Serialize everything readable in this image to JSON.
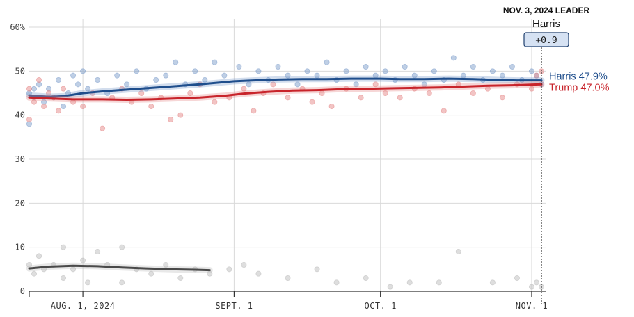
{
  "chart_data": {
    "type": "scatter",
    "title": "",
    "xlabel": "",
    "ylabel": "",
    "y_unit_suffix": "%",
    "ylim": [
      0,
      60
    ],
    "y_ticks": [
      0,
      10,
      20,
      30,
      40,
      50,
      60
    ],
    "xlim": [
      "2024-07-21",
      "2024-11-04"
    ],
    "x_ticks": [
      {
        "date": "2024-08-01",
        "label": "AUG. 1, 2024"
      },
      {
        "date": "2024-09-01",
        "label": "SEPT. 1"
      },
      {
        "date": "2024-10-01",
        "label": "OCT. 1"
      },
      {
        "date": "2024-11-01",
        "label": "NOV. 1"
      }
    ],
    "grid": true,
    "leader": {
      "heading": "NOV. 3, 2024 LEADER",
      "date": "2024-11-03",
      "name": "Harris",
      "margin": "+0.9"
    },
    "series": [
      {
        "name": "Harris",
        "color": "#1f4e8c",
        "dot_color": "#7f9fcc",
        "end_label": "Harris 47.9%",
        "trend": [
          [
            "2024-07-21",
            44.5
          ],
          [
            "2024-07-25",
            44.2
          ],
          [
            "2024-07-28",
            44.3
          ],
          [
            "2024-08-01",
            45.0
          ],
          [
            "2024-08-05",
            45.4
          ],
          [
            "2024-08-10",
            45.8
          ],
          [
            "2024-08-15",
            46.2
          ],
          [
            "2024-08-20",
            46.6
          ],
          [
            "2024-08-25",
            47.0
          ],
          [
            "2024-08-29",
            47.4
          ],
          [
            "2024-09-01",
            47.7
          ],
          [
            "2024-09-05",
            47.9
          ],
          [
            "2024-09-10",
            48.1
          ],
          [
            "2024-09-15",
            48.2
          ],
          [
            "2024-09-20",
            48.2
          ],
          [
            "2024-09-25",
            48.3
          ],
          [
            "2024-10-01",
            48.3
          ],
          [
            "2024-10-05",
            48.2
          ],
          [
            "2024-10-10",
            48.2
          ],
          [
            "2024-10-15",
            48.3
          ],
          [
            "2024-10-20",
            48.2
          ],
          [
            "2024-10-25",
            48.0
          ],
          [
            "2024-10-29",
            47.9
          ],
          [
            "2024-11-03",
            47.9
          ]
        ],
        "points": [
          [
            "2024-07-21",
            45
          ],
          [
            "2024-07-21",
            38
          ],
          [
            "2024-07-22",
            44
          ],
          [
            "2024-07-22",
            46
          ],
          [
            "2024-07-23",
            47
          ],
          [
            "2024-07-24",
            43
          ],
          [
            "2024-07-25",
            46
          ],
          [
            "2024-07-26",
            44
          ],
          [
            "2024-07-27",
            48
          ],
          [
            "2024-07-28",
            42
          ],
          [
            "2024-07-29",
            45
          ],
          [
            "2024-07-30",
            49
          ],
          [
            "2024-07-31",
            47
          ],
          [
            "2024-08-01",
            50
          ],
          [
            "2024-08-02",
            46
          ],
          [
            "2024-08-04",
            48
          ],
          [
            "2024-08-06",
            45
          ],
          [
            "2024-08-08",
            49
          ],
          [
            "2024-08-10",
            47
          ],
          [
            "2024-08-12",
            50
          ],
          [
            "2024-08-14",
            46
          ],
          [
            "2024-08-16",
            48
          ],
          [
            "2024-08-18",
            49
          ],
          [
            "2024-08-20",
            52
          ],
          [
            "2024-08-22",
            47
          ],
          [
            "2024-08-24",
            50
          ],
          [
            "2024-08-26",
            48
          ],
          [
            "2024-08-28",
            52
          ],
          [
            "2024-08-30",
            49
          ],
          [
            "2024-09-02",
            51
          ],
          [
            "2024-09-04",
            47
          ],
          [
            "2024-09-06",
            50
          ],
          [
            "2024-09-08",
            48
          ],
          [
            "2024-09-10",
            51
          ],
          [
            "2024-09-12",
            49
          ],
          [
            "2024-09-14",
            47
          ],
          [
            "2024-09-16",
            50
          ],
          [
            "2024-09-18",
            49
          ],
          [
            "2024-09-20",
            52
          ],
          [
            "2024-09-22",
            48
          ],
          [
            "2024-09-24",
            50
          ],
          [
            "2024-09-26",
            47
          ],
          [
            "2024-09-28",
            51
          ],
          [
            "2024-09-30",
            49
          ],
          [
            "2024-10-02",
            50
          ],
          [
            "2024-10-04",
            48
          ],
          [
            "2024-10-06",
            51
          ],
          [
            "2024-10-08",
            49
          ],
          [
            "2024-10-10",
            47
          ],
          [
            "2024-10-12",
            50
          ],
          [
            "2024-10-14",
            48
          ],
          [
            "2024-10-16",
            53
          ],
          [
            "2024-10-18",
            49
          ],
          [
            "2024-10-20",
            51
          ],
          [
            "2024-10-22",
            48
          ],
          [
            "2024-10-24",
            50
          ],
          [
            "2024-10-26",
            49
          ],
          [
            "2024-10-28",
            51
          ],
          [
            "2024-10-30",
            48
          ],
          [
            "2024-11-01",
            50
          ],
          [
            "2024-11-02",
            49
          ],
          [
            "2024-11-03",
            47
          ]
        ]
      },
      {
        "name": "Trump",
        "color": "#c8242b",
        "dot_color": "#e68a8a",
        "end_label": "Trump 47.0%",
        "trend": [
          [
            "2024-07-21",
            44.0
          ],
          [
            "2024-07-25",
            43.8
          ],
          [
            "2024-07-30",
            43.6
          ],
          [
            "2024-08-05",
            43.6
          ],
          [
            "2024-08-10",
            43.5
          ],
          [
            "2024-08-15",
            43.6
          ],
          [
            "2024-08-20",
            43.8
          ],
          [
            "2024-08-25",
            44.0
          ],
          [
            "2024-08-30",
            44.4
          ],
          [
            "2024-09-03",
            44.9
          ],
          [
            "2024-09-08",
            45.3
          ],
          [
            "2024-09-13",
            45.6
          ],
          [
            "2024-09-18",
            45.7
          ],
          [
            "2024-09-23",
            45.9
          ],
          [
            "2024-09-28",
            46.0
          ],
          [
            "2024-10-03",
            46.1
          ],
          [
            "2024-10-08",
            46.2
          ],
          [
            "2024-10-13",
            46.3
          ],
          [
            "2024-10-18",
            46.5
          ],
          [
            "2024-10-23",
            46.7
          ],
          [
            "2024-10-28",
            46.8
          ],
          [
            "2024-11-03",
            47.0
          ]
        ],
        "points": [
          [
            "2024-07-21",
            39
          ],
          [
            "2024-07-21",
            46
          ],
          [
            "2024-07-22",
            43
          ],
          [
            "2024-07-23",
            48
          ],
          [
            "2024-07-24",
            42
          ],
          [
            "2024-07-25",
            45
          ],
          [
            "2024-07-26",
            44
          ],
          [
            "2024-07-27",
            41
          ],
          [
            "2024-07-28",
            46
          ],
          [
            "2024-07-30",
            43
          ],
          [
            "2024-08-01",
            42
          ],
          [
            "2024-08-03",
            45
          ],
          [
            "2024-08-05",
            37
          ],
          [
            "2024-08-07",
            44
          ],
          [
            "2024-08-09",
            46
          ],
          [
            "2024-08-11",
            43
          ],
          [
            "2024-08-13",
            45
          ],
          [
            "2024-08-15",
            42
          ],
          [
            "2024-08-17",
            44
          ],
          [
            "2024-08-19",
            39
          ],
          [
            "2024-08-21",
            40
          ],
          [
            "2024-08-23",
            45
          ],
          [
            "2024-08-25",
            47
          ],
          [
            "2024-08-28",
            43
          ],
          [
            "2024-08-31",
            44
          ],
          [
            "2024-09-03",
            46
          ],
          [
            "2024-09-05",
            41
          ],
          [
            "2024-09-07",
            45
          ],
          [
            "2024-09-09",
            47
          ],
          [
            "2024-09-12",
            44
          ],
          [
            "2024-09-15",
            46
          ],
          [
            "2024-09-17",
            43
          ],
          [
            "2024-09-19",
            45
          ],
          [
            "2024-09-21",
            42
          ],
          [
            "2024-09-24",
            46
          ],
          [
            "2024-09-27",
            44
          ],
          [
            "2024-09-30",
            47
          ],
          [
            "2024-10-02",
            45
          ],
          [
            "2024-10-05",
            44
          ],
          [
            "2024-10-08",
            46
          ],
          [
            "2024-10-11",
            45
          ],
          [
            "2024-10-14",
            41
          ],
          [
            "2024-10-17",
            47
          ],
          [
            "2024-10-20",
            45
          ],
          [
            "2024-10-23",
            46
          ],
          [
            "2024-10-26",
            44
          ],
          [
            "2024-10-29",
            47
          ],
          [
            "2024-11-01",
            46
          ],
          [
            "2024-11-02",
            49
          ],
          [
            "2024-11-03",
            50
          ]
        ]
      },
      {
        "name": "",
        "color": "#4a4a4a",
        "dot_color": "#bdbdbd",
        "end_label": "",
        "trend": [
          [
            "2024-07-21",
            5.2
          ],
          [
            "2024-07-25",
            5.6
          ],
          [
            "2024-07-30",
            5.8
          ],
          [
            "2024-08-04",
            5.7
          ],
          [
            "2024-08-09",
            5.4
          ],
          [
            "2024-08-14",
            5.2
          ],
          [
            "2024-08-19",
            5.0
          ],
          [
            "2024-08-24",
            4.9
          ],
          [
            "2024-08-27",
            4.8
          ]
        ],
        "points": [
          [
            "2024-07-21",
            6
          ],
          [
            "2024-07-22",
            4
          ],
          [
            "2024-07-23",
            8
          ],
          [
            "2024-07-24",
            5
          ],
          [
            "2024-07-26",
            6
          ],
          [
            "2024-07-28",
            10
          ],
          [
            "2024-07-28",
            3
          ],
          [
            "2024-07-30",
            5
          ],
          [
            "2024-08-01",
            7
          ],
          [
            "2024-08-02",
            2
          ],
          [
            "2024-08-04",
            9
          ],
          [
            "2024-08-06",
            6
          ],
          [
            "2024-08-09",
            10
          ],
          [
            "2024-08-09",
            2
          ],
          [
            "2024-08-12",
            5
          ],
          [
            "2024-08-15",
            4
          ],
          [
            "2024-08-18",
            6
          ],
          [
            "2024-08-21",
            3
          ],
          [
            "2024-08-24",
            5
          ],
          [
            "2024-08-27",
            4
          ],
          [
            "2024-08-31",
            5
          ],
          [
            "2024-09-03",
            6
          ],
          [
            "2024-09-06",
            4
          ],
          [
            "2024-09-12",
            3
          ],
          [
            "2024-09-18",
            5
          ],
          [
            "2024-09-22",
            2
          ],
          [
            "2024-09-28",
            3
          ],
          [
            "2024-10-03",
            1
          ],
          [
            "2024-10-07",
            2
          ],
          [
            "2024-10-13",
            2
          ],
          [
            "2024-10-17",
            9
          ],
          [
            "2024-10-24",
            2
          ],
          [
            "2024-10-29",
            3
          ],
          [
            "2024-11-01",
            1
          ],
          [
            "2024-11-02",
            2
          ],
          [
            "2024-11-03",
            1
          ]
        ]
      }
    ]
  }
}
